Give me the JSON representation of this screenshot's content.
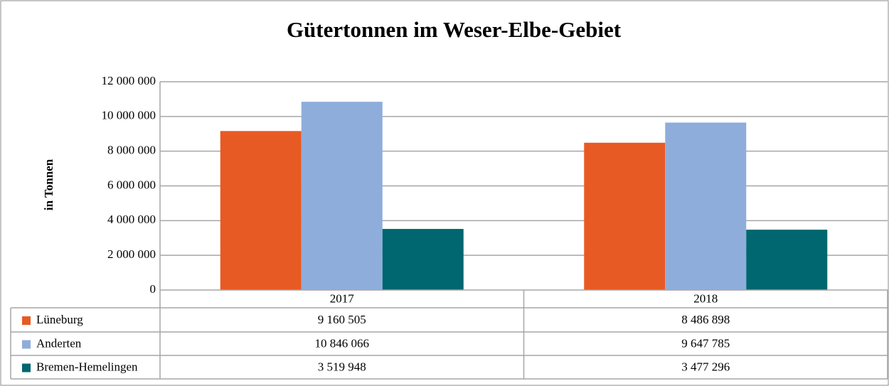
{
  "chart_data": {
    "type": "bar",
    "title": "Gütertonnen im Weser-Elbe-Gebiet",
    "y_label": "in Tonnen",
    "categories": [
      "2017",
      "2018"
    ],
    "series": [
      {
        "name": "Lüneburg",
        "color": "#e85a23",
        "values": [
          9160505,
          8486898
        ],
        "value_labels": [
          "9 160 505",
          "8 486 898"
        ]
      },
      {
        "name": "Anderten",
        "color": "#8faddb",
        "values": [
          10846066,
          9647785
        ],
        "value_labels": [
          "10 846 066",
          "9 647 785"
        ]
      },
      {
        "name": "Bremen-Hemelingen",
        "color": "#00666f",
        "values": [
          3519948,
          3477296
        ],
        "value_labels": [
          "3 519 948",
          "3 477 296"
        ]
      }
    ],
    "ylim": [
      0,
      12000000
    ],
    "yticks": [
      0,
      {
        "value": 2000000,
        "label": "2 000 000"
      },
      {
        "value": 4000000,
        "label": "4 000 000"
      },
      {
        "value": 6000000,
        "label": "6 000 000"
      },
      {
        "value": 8000000,
        "label": "8 000 000"
      },
      {
        "value": 10000000,
        "label": "10 000 000"
      },
      {
        "value": 12000000,
        "label": "12 000 000"
      }
    ],
    "grid": true
  }
}
